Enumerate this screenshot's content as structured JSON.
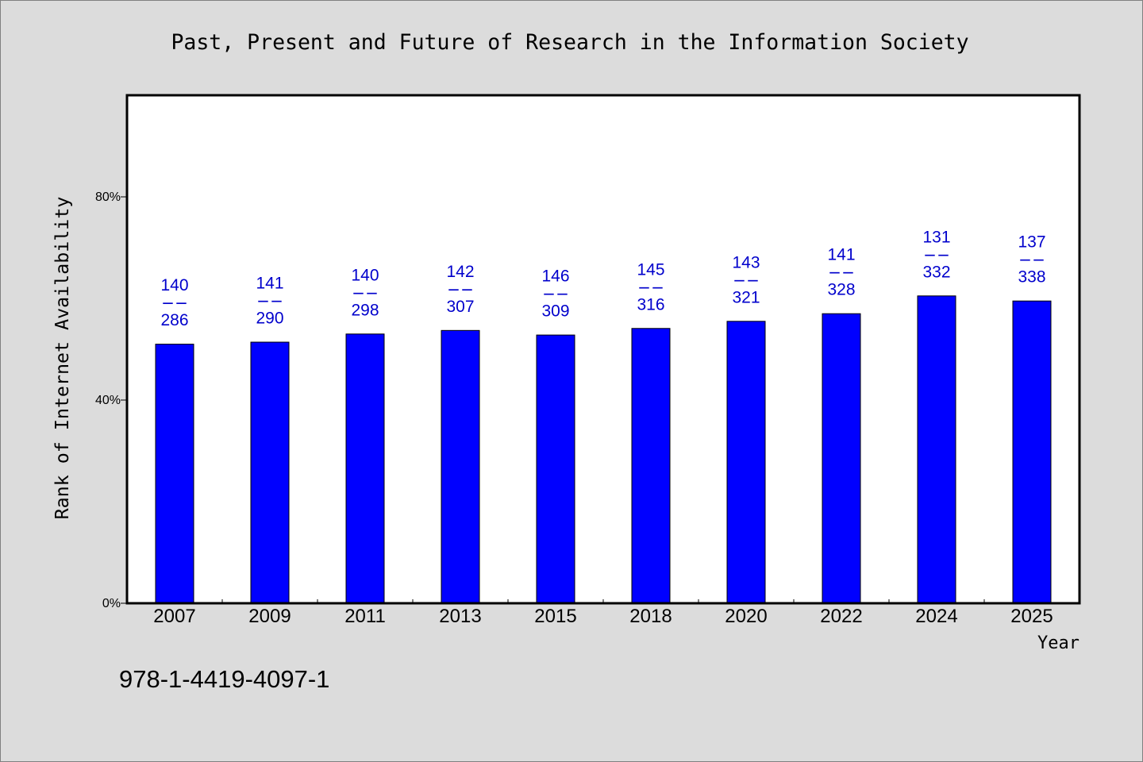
{
  "chart_data": {
    "type": "bar",
    "title": "Past, Present and Future of Research in the Information Society",
    "xlabel": "Year",
    "ylabel": "Rank of Internet Availability",
    "categories": [
      "2007",
      "2009",
      "2011",
      "2013",
      "2015",
      "2018",
      "2020",
      "2022",
      "2024",
      "2025"
    ],
    "values": [
      51.0,
      51.4,
      53.0,
      53.7,
      52.8,
      54.1,
      55.5,
      57.0,
      60.5,
      59.5
    ],
    "data_labels": [
      {
        "rank": 140,
        "total": 286
      },
      {
        "rank": 141,
        "total": 290
      },
      {
        "rank": 140,
        "total": 298
      },
      {
        "rank": 142,
        "total": 307
      },
      {
        "rank": 146,
        "total": 309
      },
      {
        "rank": 145,
        "total": 316
      },
      {
        "rank": 143,
        "total": 321
      },
      {
        "rank": 141,
        "total": 328
      },
      {
        "rank": 131,
        "total": 332
      },
      {
        "rank": 137,
        "total": 338
      }
    ],
    "data_label_separator": "--",
    "ylim": [
      0,
      100
    ],
    "y_ticks": [
      {
        "value": 0,
        "label": "0%"
      },
      {
        "value": 40,
        "label": "40%"
      },
      {
        "value": 80,
        "label": "80%"
      }
    ],
    "grid": false,
    "legend": false,
    "colors": {
      "bar": "#0000ff",
      "bar_edge": "#000000",
      "data_label": "#0000cc",
      "axis": "#000000",
      "plot_background": "#ffffff",
      "page_background": "#dcdcdc"
    }
  },
  "footer": {
    "text": "978-1-4419-4097-1"
  }
}
